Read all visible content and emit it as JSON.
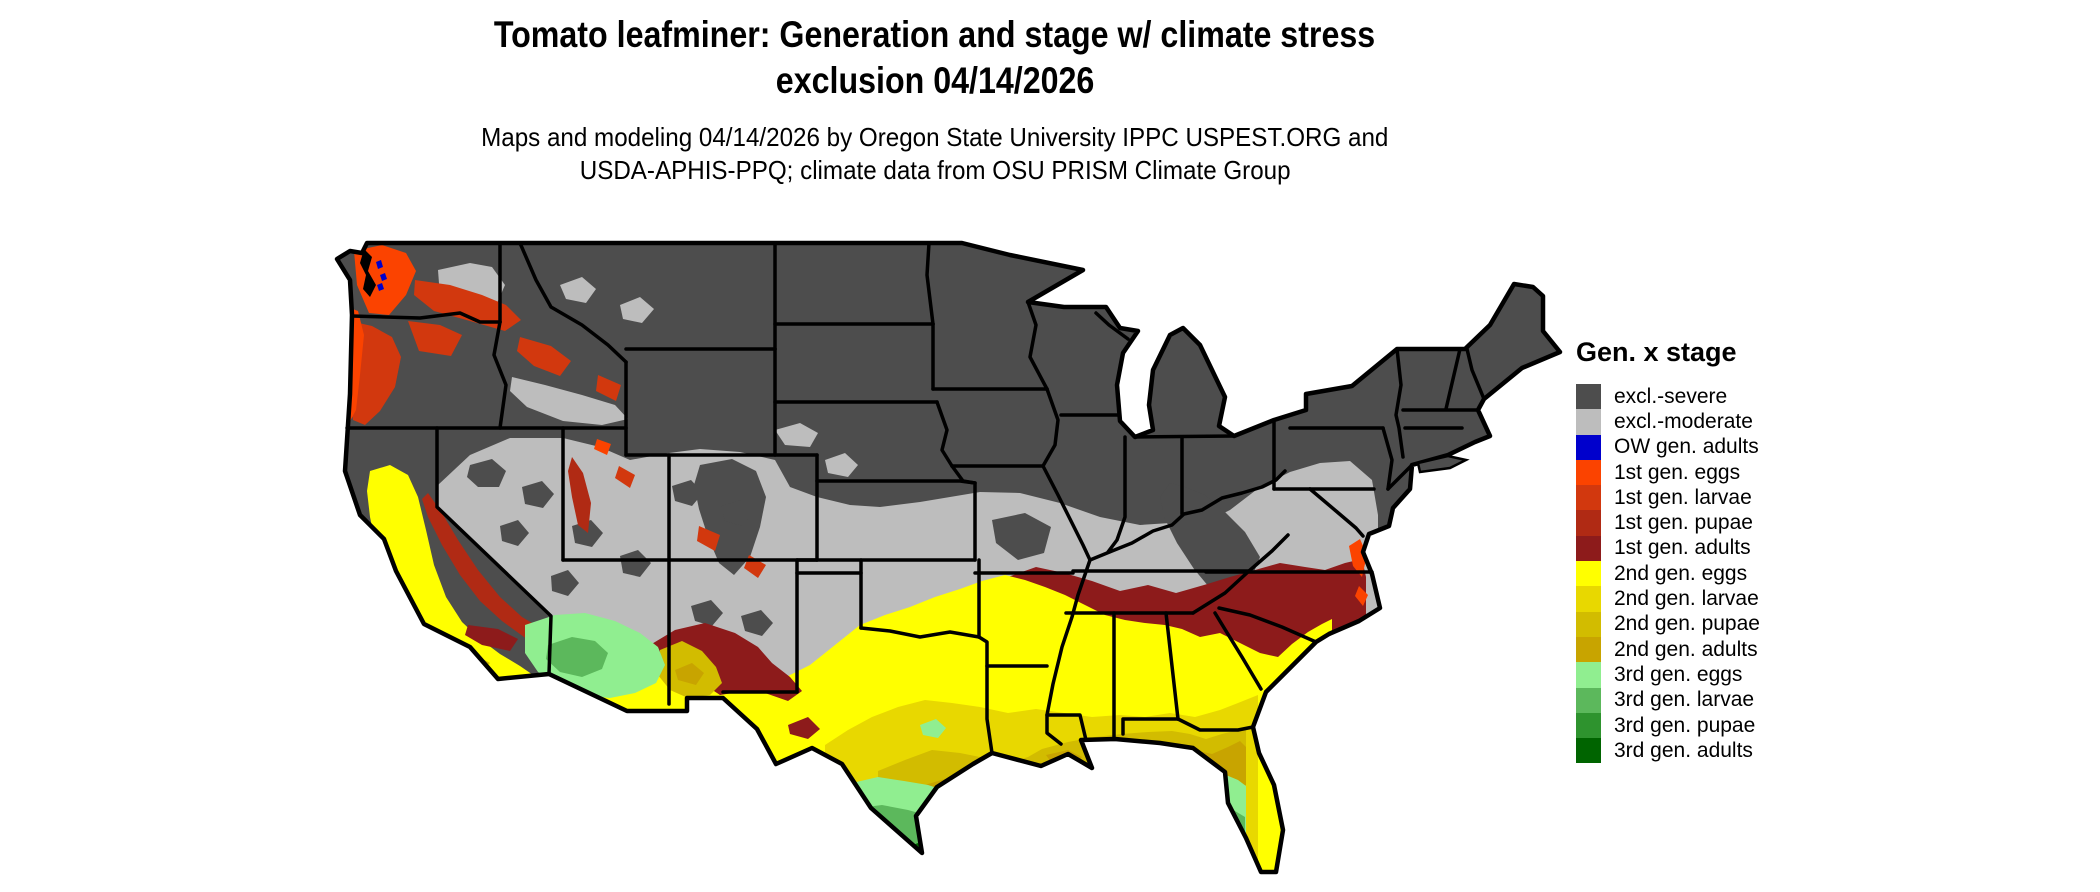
{
  "page": {
    "background": "#FFFFFF"
  },
  "title": {
    "line1": "Tomato leafminer: Generation and stage w/ climate stress",
    "line2": "exclusion 04/14/2026"
  },
  "subtitle": {
    "line1": "Maps and modeling 04/14/2026 by Oregon State University IPPC USPEST.ORG and",
    "line2": "USDA-APHIS-PPQ; climate data from OSU PRISM Climate Group"
  },
  "legend": {
    "title": "Gen. x stage",
    "items": [
      {
        "key": "excl_severe",
        "label": "excl.-severe",
        "color": "#4D4D4D"
      },
      {
        "key": "excl_moderate",
        "label": "excl.-moderate",
        "color": "#BDBDBD"
      },
      {
        "key": "ow_adults",
        "label": "OW gen. adults",
        "color": "#0000CC"
      },
      {
        "key": "g1_eggs",
        "label": "1st gen. eggs",
        "color": "#FB4300"
      },
      {
        "key": "g1_larvae",
        "label": "1st gen. larvae",
        "color": "#D2380E"
      },
      {
        "key": "g1_pupae",
        "label": "1st gen. pupae",
        "color": "#B02A14"
      },
      {
        "key": "g1_adults",
        "label": "1st gen. adults",
        "color": "#8D1B1B"
      },
      {
        "key": "g2_eggs",
        "label": "2nd gen. eggs",
        "color": "#FFFF00"
      },
      {
        "key": "g2_larvae",
        "label": "2nd gen. larvae",
        "color": "#E8D800"
      },
      {
        "key": "g2_pupae",
        "label": "2nd gen. pupae",
        "color": "#D2BC00"
      },
      {
        "key": "g2_adults",
        "label": "2nd gen. adults",
        "color": "#C8A400"
      },
      {
        "key": "g3_eggs",
        "label": "3rd gen. eggs",
        "color": "#90EE90"
      },
      {
        "key": "g3_larvae",
        "label": "3rd gen. larvae",
        "color": "#5CB85C"
      },
      {
        "key": "g3_pupae",
        "label": "3rd gen. pupae",
        "color": "#2E932E"
      },
      {
        "key": "g3_adults",
        "label": "3rd gen. adults",
        "color": "#006400"
      }
    ]
  },
  "map": {
    "border_color": "#000000",
    "water_color": "#FFFFFF"
  }
}
